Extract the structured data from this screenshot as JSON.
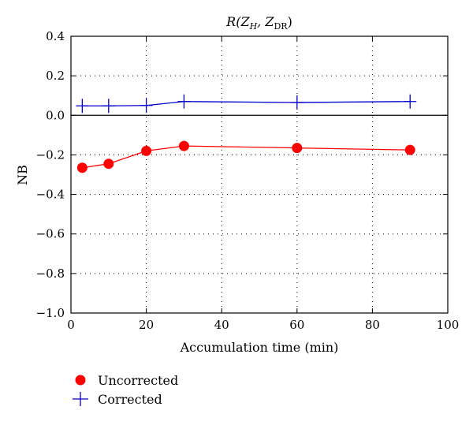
{
  "chart_data": {
    "type": "line",
    "title": {
      "main": "R(Z",
      "sub1": "H",
      "mid": ", Z",
      "sub2": "DR",
      "end": ")"
    },
    "xlabel": "Accumulation time (min)",
    "ylabel": "NB",
    "xlim": [
      0,
      100
    ],
    "ylim": [
      -1.0,
      0.4
    ],
    "xticks": [
      0,
      20,
      40,
      60,
      80,
      100
    ],
    "xtick_labels": [
      "0",
      "20",
      "40",
      "60",
      "80",
      "100"
    ],
    "yticks": [
      0.4,
      0.2,
      0.0,
      -0.2,
      -0.4,
      -0.6,
      -0.8,
      -1.0
    ],
    "ytick_labels": [
      "0.4",
      "0.2",
      "0.0",
      "−0.2",
      "−0.4",
      "−0.6",
      "−0.8",
      "−1.0"
    ],
    "grid": true,
    "zero_line": true,
    "legend_position": "bottom-left outside",
    "series": [
      {
        "name": "Uncorrected",
        "color": "#ff0000",
        "marker": "filled-circle",
        "x": [
          3,
          10,
          20,
          30,
          60,
          90
        ],
        "y": [
          -0.265,
          -0.245,
          -0.18,
          -0.155,
          -0.165,
          -0.175
        ]
      },
      {
        "name": "Corrected",
        "color": "#0000cc",
        "marker": "plus",
        "x": [
          3,
          10,
          20,
          30,
          60,
          90
        ],
        "y": [
          0.048,
          0.048,
          0.05,
          0.07,
          0.065,
          0.07
        ]
      }
    ]
  }
}
